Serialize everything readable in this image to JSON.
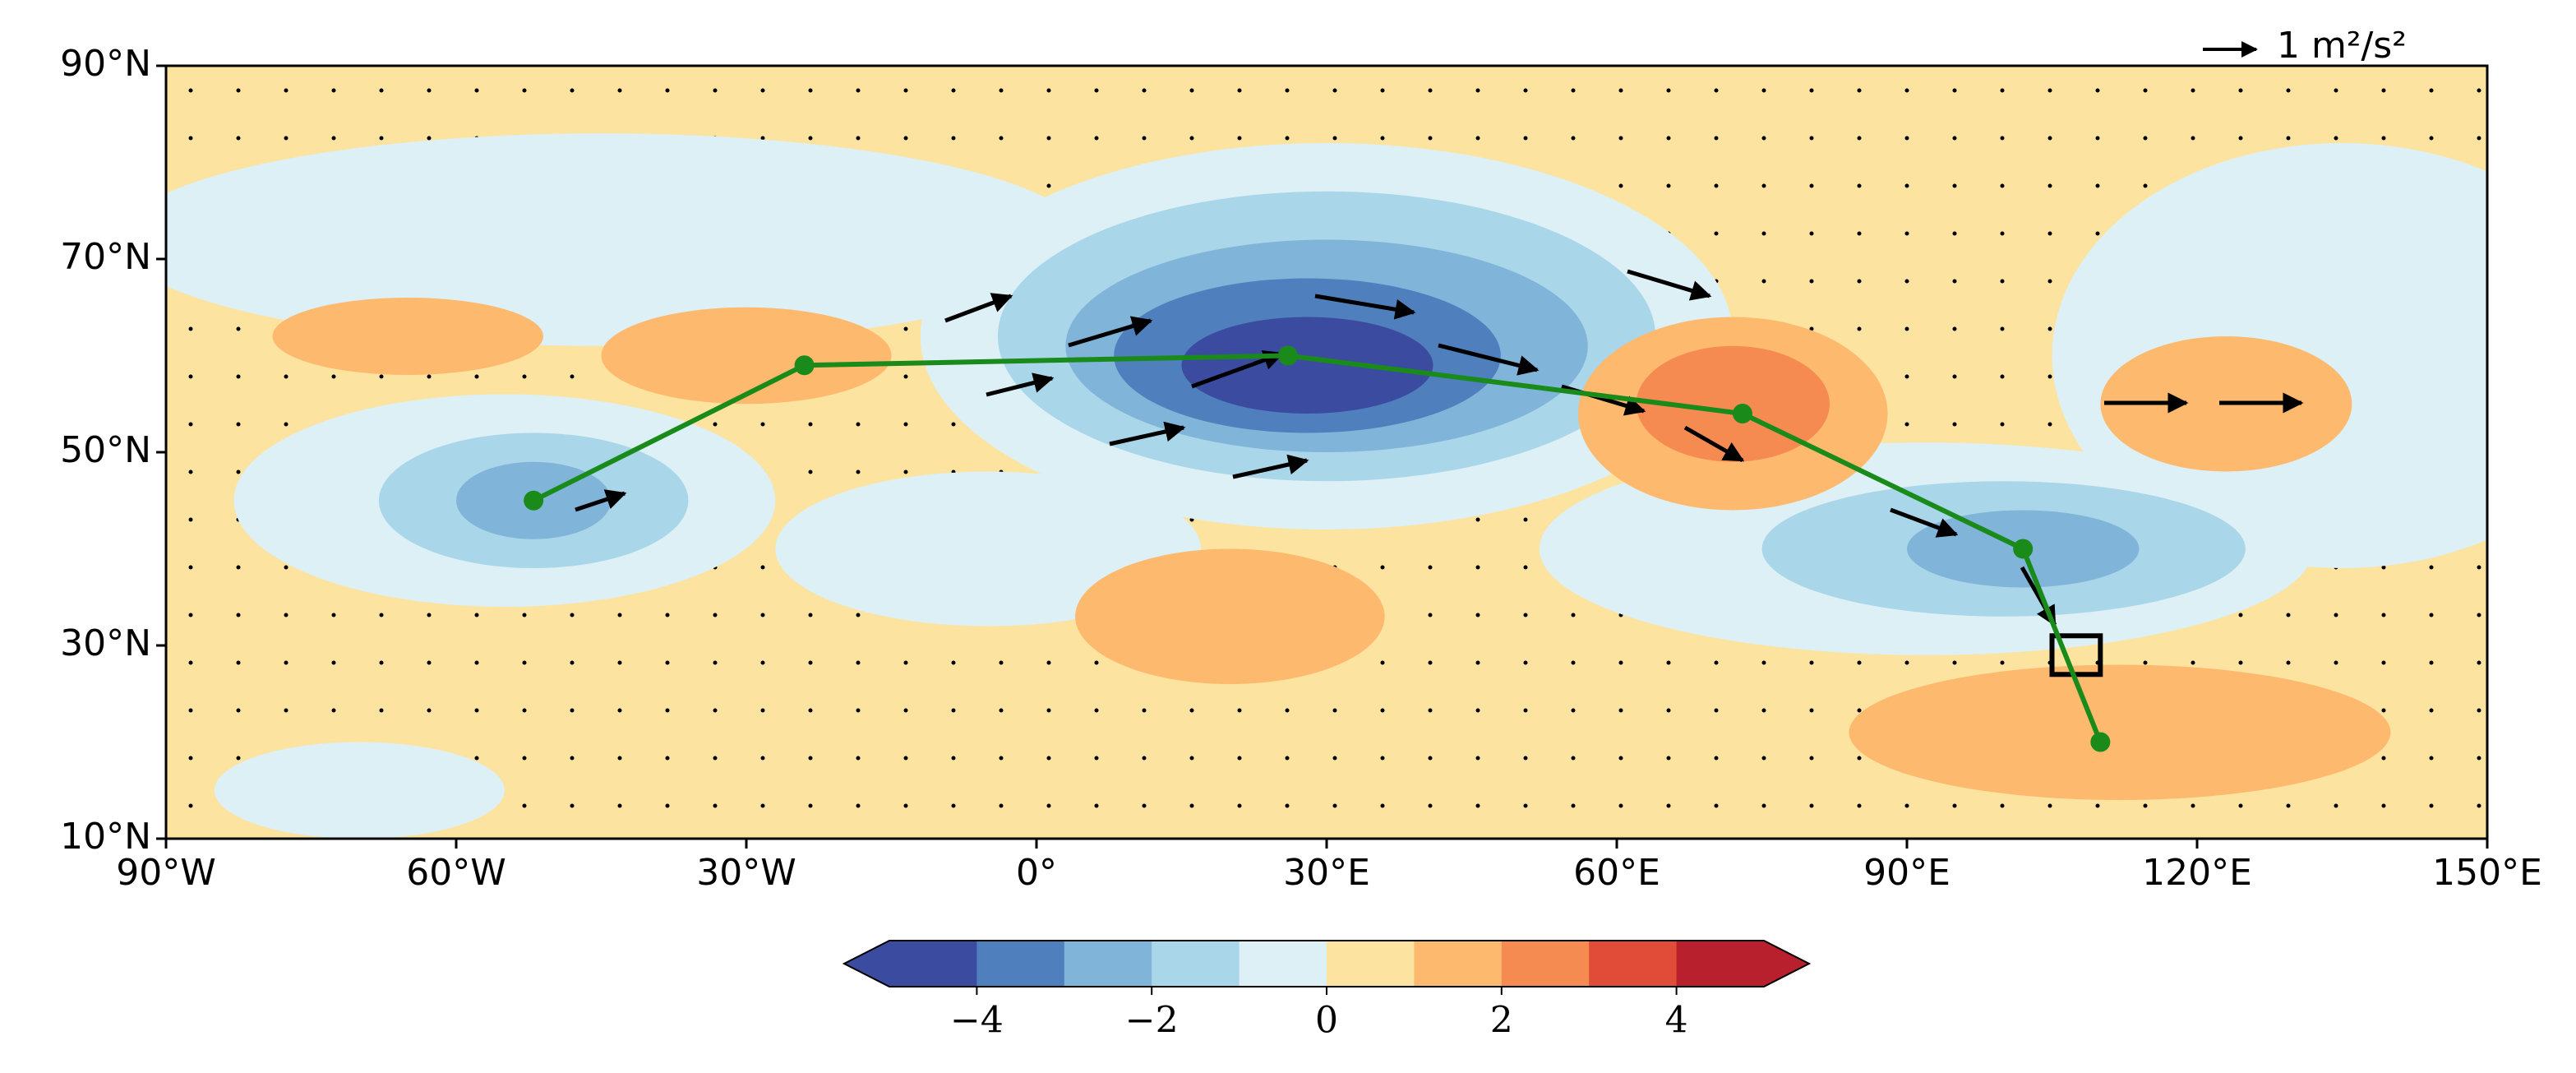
{
  "chart_data": {
    "type": "map",
    "xlim": [
      -90,
      150
    ],
    "ylim": [
      10,
      90
    ],
    "xticks": [
      {
        "value": -90,
        "label": "90°W"
      },
      {
        "value": -60,
        "label": "60°W"
      },
      {
        "value": -30,
        "label": "30°W"
      },
      {
        "value": 0,
        "label": "0°"
      },
      {
        "value": 30,
        "label": "30°E"
      },
      {
        "value": 60,
        "label": "60°E"
      },
      {
        "value": 90,
        "label": "90°E"
      },
      {
        "value": 120,
        "label": "120°E"
      },
      {
        "value": 150,
        "label": "150°E"
      }
    ],
    "yticks": [
      {
        "value": 10,
        "label": "10°N"
      },
      {
        "value": 30,
        "label": "30°N"
      },
      {
        "value": 50,
        "label": "50°N"
      },
      {
        "value": 70,
        "label": "70°N"
      },
      {
        "value": 90,
        "label": "90°N"
      }
    ],
    "path": {
      "color": "#1a8a1a",
      "lon": [
        -52,
        -24,
        26,
        73,
        102,
        110
      ],
      "lat": [
        45,
        59,
        60,
        54,
        40,
        20
      ]
    },
    "box": {
      "lon": [
        105,
        110
      ],
      "lat": [
        27,
        31
      ]
    },
    "reference_arrow": "1 m²/s²",
    "colorbar": {
      "lim": [
        -5,
        5
      ],
      "colors": [
        "#3b4ca0",
        "#4f7fbd",
        "#80b4d8",
        "#aad6e9",
        "#dcf0f6",
        "#fde3a0",
        "#fdb96e",
        "#f68b52",
        "#e04c37",
        "#b8202d"
      ],
      "ticks": [
        {
          "value": -4,
          "label": "−4"
        },
        {
          "value": -2,
          "label": "−2"
        },
        0,
        2,
        4
      ]
    }
  }
}
